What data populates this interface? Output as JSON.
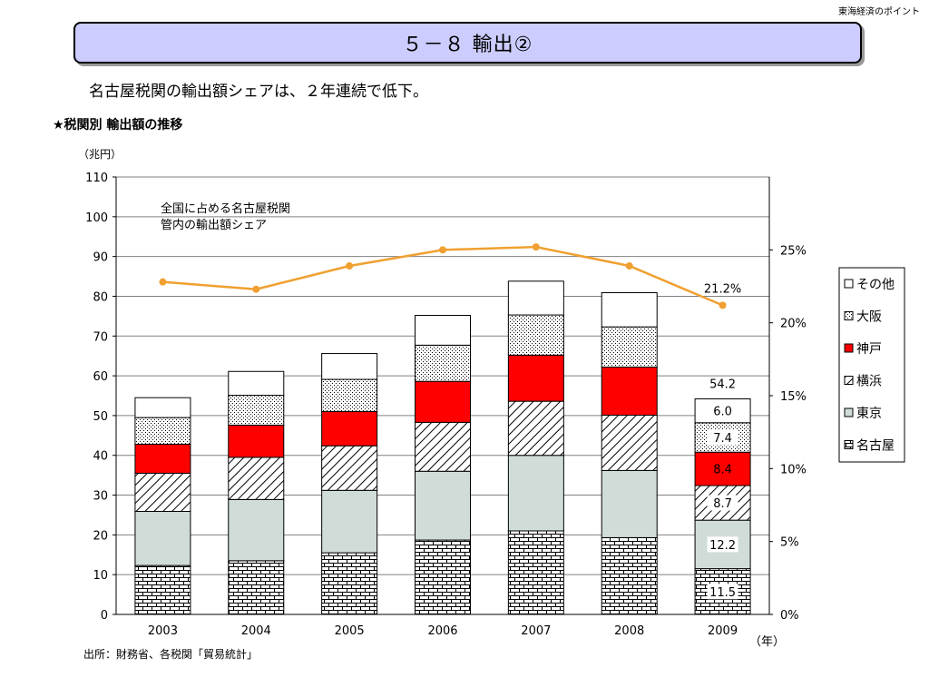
{
  "header_note": "東海経済のポイント",
  "page_title": "５－８ 輸出②",
  "subtitle": "名古屋税関の輸出額シェアは、２年連続で低下。",
  "section_label": "★税関別 輸出額の推移",
  "source": "出所：財務省、各税関「貿易統計」",
  "chart_data": {
    "type": "bar",
    "stacked": true,
    "categories": [
      "2003",
      "2004",
      "2005",
      "2006",
      "2007",
      "2008",
      "2009"
    ],
    "ylabel": "（兆円）",
    "xlabel": "（年）",
    "ylim": [
      0,
      110
    ],
    "yticks": [
      0,
      10,
      20,
      30,
      40,
      50,
      60,
      70,
      80,
      90,
      100,
      110
    ],
    "y2lim": [
      0,
      30
    ],
    "y2ticks": [
      0,
      5,
      10,
      15,
      20,
      25
    ],
    "y2ticklabels": [
      "0%",
      "5%",
      "10%",
      "15%",
      "20%",
      "25%"
    ],
    "series": [
      {
        "name": "名古屋",
        "pattern": "brick",
        "color": "#ffffff",
        "values": [
          12.3,
          13.5,
          15.5,
          18.7,
          21.0,
          19.3,
          11.5
        ]
      },
      {
        "name": "東京",
        "pattern": "solid",
        "color": "#d0dcd8",
        "values": [
          13.6,
          15.4,
          15.7,
          17.3,
          19.0,
          16.9,
          12.2
        ]
      },
      {
        "name": "横浜",
        "pattern": "diagonal",
        "color": "#ffffff",
        "values": [
          9.6,
          10.6,
          11.2,
          12.3,
          13.6,
          13.9,
          8.7
        ]
      },
      {
        "name": "神戸",
        "pattern": "solid",
        "color": "#ff0000",
        "values": [
          7.3,
          8.1,
          8.6,
          10.3,
          11.6,
          12.1,
          8.4
        ]
      },
      {
        "name": "大阪",
        "pattern": "dots",
        "color": "#ffffff",
        "values": [
          6.7,
          7.5,
          8.1,
          9.1,
          10.1,
          10.1,
          7.4
        ]
      },
      {
        "name": "その他",
        "pattern": "solid",
        "color": "#ffffff",
        "values": [
          5.0,
          6.0,
          6.5,
          7.5,
          8.5,
          8.6,
          6.0
        ]
      }
    ],
    "legend_order": [
      "その他",
      "大阪",
      "神戸",
      "横浜",
      "東京",
      "名古屋"
    ],
    "legend_placement": "right",
    "totals": [
      null,
      null,
      null,
      null,
      null,
      null,
      54.2
    ],
    "total_labels": [
      "",
      "",
      "",
      "",
      "",
      "",
      "54.2"
    ],
    "data_labels_2009": [
      "11.5",
      "12.2",
      "8.7",
      "8.4",
      "7.4",
      "6.0"
    ],
    "line_series": {
      "axis": "right",
      "color": "#f0a030",
      "values": [
        22.8,
        22.3,
        23.9,
        25.0,
        25.2,
        23.9,
        21.2
      ],
      "annotation": "全国に占める名古屋税関\n管内の輸出額シェア",
      "last_label": "21.2%"
    },
    "grid": true
  }
}
